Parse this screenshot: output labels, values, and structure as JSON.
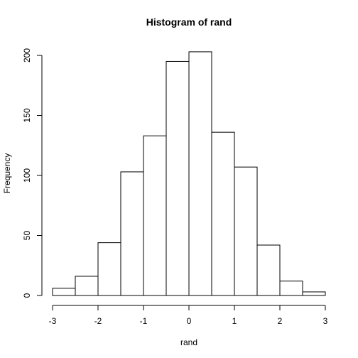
{
  "chart_data": {
    "type": "bar",
    "title": "Histogram of rand",
    "xlabel": "rand",
    "ylabel": "Frequency",
    "bins": [
      {
        "start": -3.0,
        "end": -2.5,
        "count": 6
      },
      {
        "start": -2.5,
        "end": -2.0,
        "count": 16
      },
      {
        "start": -2.0,
        "end": -1.5,
        "count": 44
      },
      {
        "start": -1.5,
        "end": -1.0,
        "count": 103
      },
      {
        "start": -1.0,
        "end": -0.5,
        "count": 133
      },
      {
        "start": -0.5,
        "end": 0.0,
        "count": 195
      },
      {
        "start": 0.0,
        "end": 0.5,
        "count": 203
      },
      {
        "start": 0.5,
        "end": 1.0,
        "count": 136
      },
      {
        "start": 1.0,
        "end": 1.5,
        "count": 107
      },
      {
        "start": 1.5,
        "end": 2.0,
        "count": 42
      },
      {
        "start": 2.0,
        "end": 2.5,
        "count": 12
      },
      {
        "start": 2.5,
        "end": 3.0,
        "count": 3
      }
    ],
    "xlim": [
      -3,
      3
    ],
    "ylim": [
      0,
      210
    ],
    "x_ticks": [
      -3,
      -2,
      -1,
      0,
      1,
      2,
      3
    ],
    "x_tick_labels": [
      "-3",
      "-2",
      "-1",
      "0",
      "1",
      "2",
      "3"
    ],
    "y_ticks": [
      0,
      50,
      100,
      150,
      200
    ],
    "y_tick_labels": [
      "0",
      "50",
      "100",
      "150",
      "200"
    ],
    "grid": false,
    "colors": {
      "bar_fill": "#ffffff",
      "bar_stroke": "#000000",
      "background": "#ffffff"
    }
  }
}
